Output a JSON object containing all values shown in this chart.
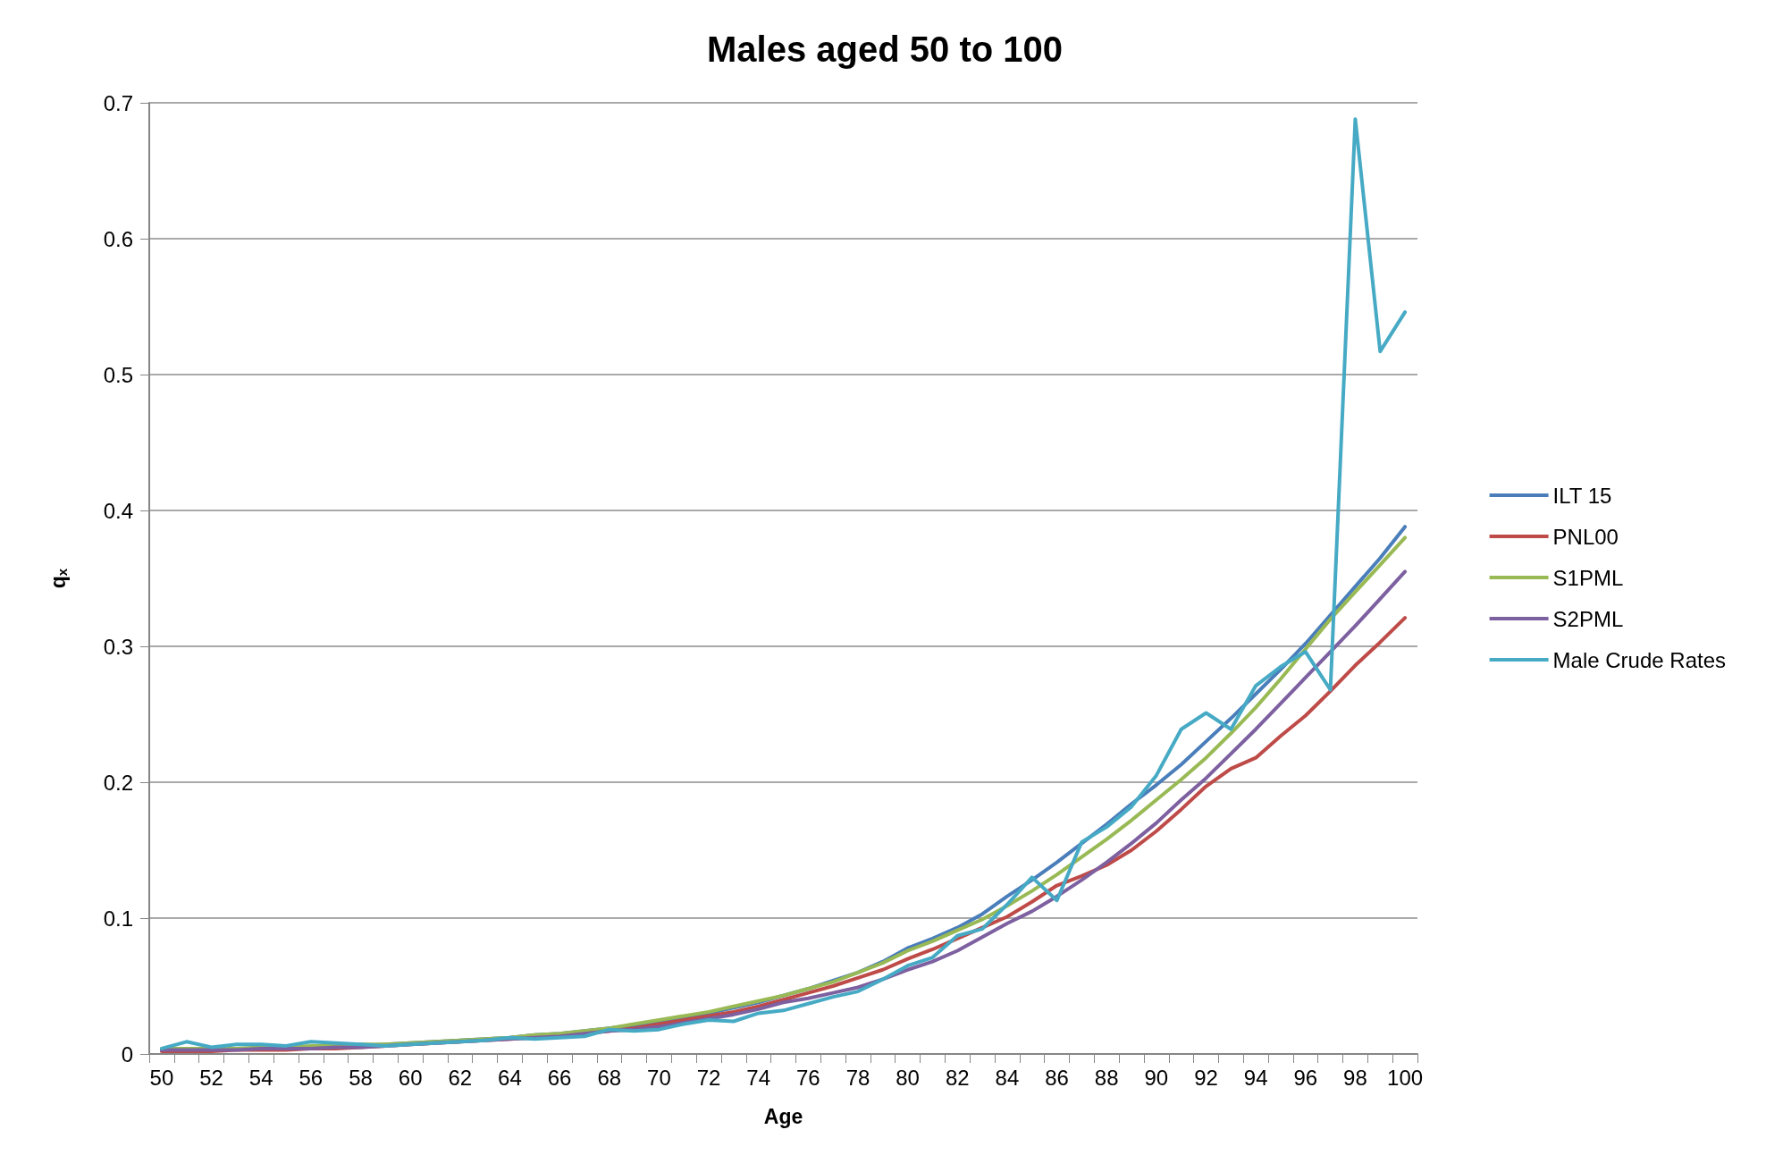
{
  "chart_data": {
    "type": "line",
    "title": "Males aged 50 to 100",
    "xlabel": "Age",
    "ylabel": "q$_{x}$",
    "categories": [
      "50",
      null,
      "52",
      null,
      "54",
      null,
      "56",
      null,
      "58",
      null,
      "60",
      null,
      "62",
      null,
      "64",
      null,
      "66",
      null,
      "68",
      null,
      "70",
      null,
      "72",
      null,
      "74",
      null,
      "76",
      null,
      "78",
      null,
      "80",
      null,
      "82",
      null,
      "84",
      null,
      "86",
      null,
      "88",
      null,
      "90",
      null,
      "92",
      null,
      "94",
      null,
      "96",
      null,
      "98",
      null,
      "100"
    ],
    "series": [
      {
        "name": "ILT 15",
        "color": "#4a7ebb",
        "values": [
          0.003,
          0.003,
          0.003,
          0.004,
          0.004,
          0.005,
          0.005,
          0.006,
          0.006,
          0.007,
          0.008,
          0.009,
          0.01,
          0.011,
          0.012,
          0.014,
          0.015,
          0.017,
          0.019,
          0.021,
          0.024,
          0.027,
          0.03,
          0.034,
          0.038,
          0.043,
          0.048,
          0.054,
          0.06,
          0.068,
          0.078,
          0.085,
          0.093,
          0.103,
          0.116,
          0.128,
          0.141,
          0.155,
          0.169,
          0.184,
          0.198,
          0.213,
          0.23,
          0.247,
          0.265,
          0.283,
          0.302,
          0.323,
          0.344,
          0.365,
          0.388
        ]
      },
      {
        "name": "PNL00",
        "color": "#be4b48",
        "values": [
          0.002,
          0.002,
          0.002,
          0.003,
          0.003,
          0.003,
          0.004,
          0.004,
          0.005,
          0.006,
          0.007,
          0.008,
          0.009,
          0.01,
          0.011,
          0.012,
          0.014,
          0.015,
          0.017,
          0.019,
          0.022,
          0.025,
          0.028,
          0.031,
          0.035,
          0.04,
          0.045,
          0.05,
          0.056,
          0.062,
          0.07,
          0.077,
          0.085,
          0.093,
          0.101,
          0.112,
          0.124,
          0.131,
          0.139,
          0.15,
          0.164,
          0.18,
          0.197,
          0.21,
          0.218,
          0.234,
          0.249,
          0.267,
          0.286,
          0.303,
          0.321
        ]
      },
      {
        "name": "S1PML",
        "color": "#98b954",
        "values": [
          0.004,
          0.004,
          0.004,
          0.004,
          0.005,
          0.005,
          0.006,
          0.006,
          0.007,
          0.007,
          0.008,
          0.009,
          0.01,
          0.011,
          0.012,
          0.014,
          0.015,
          0.017,
          0.019,
          0.022,
          0.025,
          0.028,
          0.031,
          0.035,
          0.039,
          0.043,
          0.048,
          0.053,
          0.06,
          0.067,
          0.076,
          0.083,
          0.091,
          0.099,
          0.109,
          0.12,
          0.132,
          0.145,
          0.158,
          0.172,
          0.187,
          0.202,
          0.218,
          0.236,
          0.255,
          0.276,
          0.298,
          0.32,
          0.34,
          0.36,
          0.38
        ]
      },
      {
        "name": "S2PML",
        "color": "#7d60a0",
        "values": [
          0.003,
          0.003,
          0.003,
          0.003,
          0.004,
          0.004,
          0.004,
          0.005,
          0.005,
          0.006,
          0.007,
          0.008,
          0.009,
          0.01,
          0.011,
          0.012,
          0.013,
          0.015,
          0.017,
          0.018,
          0.02,
          0.023,
          0.026,
          0.029,
          0.033,
          0.038,
          0.041,
          0.045,
          0.049,
          0.055,
          0.062,
          0.068,
          0.076,
          0.086,
          0.096,
          0.105,
          0.116,
          0.128,
          0.141,
          0.155,
          0.17,
          0.187,
          0.203,
          0.221,
          0.239,
          0.258,
          0.277,
          0.296,
          0.315,
          0.335,
          0.355
        ]
      },
      {
        "name": "Male Crude Rates",
        "color": "#46aac5",
        "values": [
          0.004,
          0.009,
          0.005,
          0.007,
          0.007,
          0.006,
          0.009,
          0.008,
          0.007,
          0.006,
          0.007,
          0.008,
          0.009,
          0.01,
          0.012,
          0.011,
          0.012,
          0.013,
          0.018,
          0.017,
          0.018,
          0.022,
          0.025,
          0.024,
          0.03,
          0.032,
          0.037,
          0.042,
          0.046,
          0.055,
          0.065,
          0.071,
          0.087,
          0.092,
          0.11,
          0.13,
          0.113,
          0.156,
          0.167,
          0.182,
          0.205,
          0.239,
          0.251,
          0.239,
          0.271,
          0.285,
          0.296,
          0.268,
          0.688,
          0.517,
          0.546
        ]
      }
    ],
    "ylim": [
      0,
      0.7
    ],
    "yticks": [
      0,
      0.1,
      0.2,
      0.3,
      0.4,
      0.5,
      0.6,
      0.7
    ],
    "grid": "y",
    "legend": "right",
    "marker": "none",
    "line_style": "solid"
  }
}
